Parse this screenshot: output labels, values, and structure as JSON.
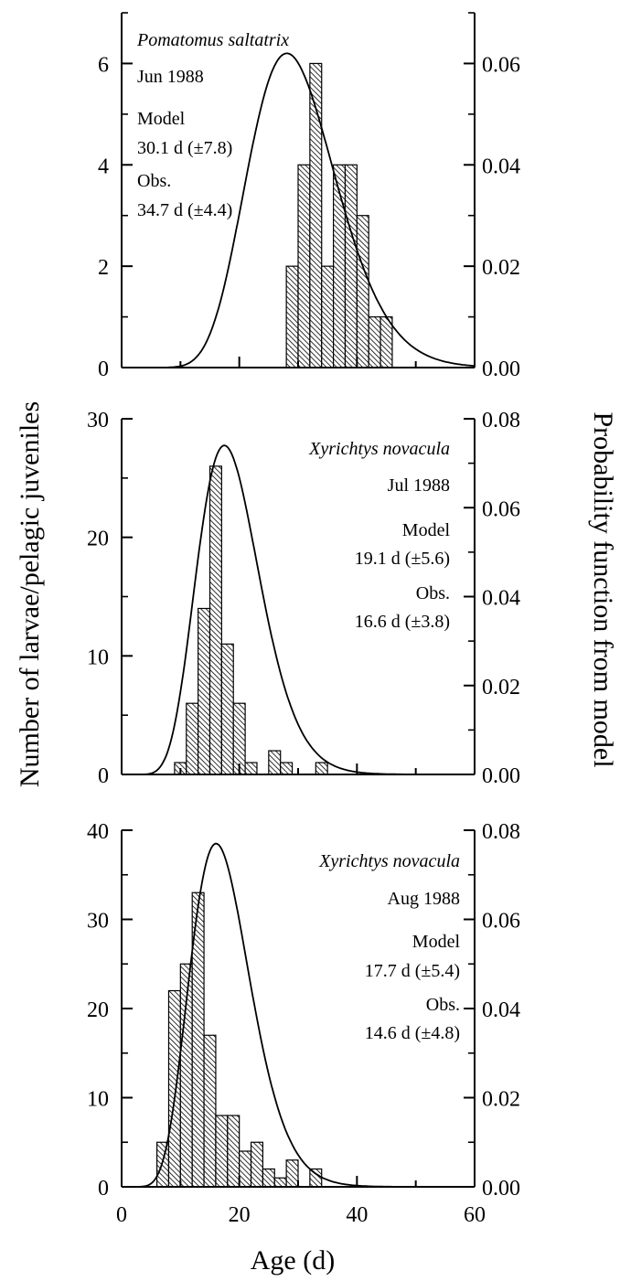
{
  "chart_data": [
    {
      "type": "bar",
      "overlay": "line",
      "x_tick_labels": [
        "",
        "",
        "",
        ""
      ],
      "y_tick_labels": [
        "0",
        "2",
        "4",
        "6"
      ],
      "y2_tick_labels": [
        "0.00",
        "0.02",
        "0.04",
        "0.06"
      ],
      "annotations": [
        {
          "text": "Pomatomus saltatrix",
          "italic": true
        },
        {
          "text": "Jun 1988",
          "italic": false
        },
        {
          "text": "Model",
          "italic": false
        },
        {
          "text": "30.1 d (±7.8)",
          "italic": false
        },
        {
          "text": "Obs.",
          "italic": false
        },
        {
          "text": "34.7 d (±4.4)",
          "italic": false
        }
      ],
      "xlim": [
        0,
        60
      ],
      "ylim": [
        0,
        7
      ],
      "y2lim": [
        0,
        0.07
      ],
      "bin_width": 2,
      "bars": [
        {
          "x": 28,
          "count": 2
        },
        {
          "x": 30,
          "count": 4
        },
        {
          "x": 32,
          "count": 6
        },
        {
          "x": 34,
          "count": 2
        },
        {
          "x": 36,
          "count": 4
        },
        {
          "x": 38,
          "count": 4
        },
        {
          "x": 40,
          "count": 3
        },
        {
          "x": 42,
          "count": 1
        },
        {
          "x": 44,
          "count": 1
        }
      ],
      "model_curve": {
        "mean": 30.1,
        "sd": 7.8,
        "peak": 0.062
      },
      "grid": false
    },
    {
      "type": "bar",
      "overlay": "line",
      "x_tick_labels": [
        "",
        "",
        "",
        ""
      ],
      "y_tick_labels": [
        "0",
        "10",
        "20",
        "30"
      ],
      "y2_tick_labels": [
        "0.00",
        "0.02",
        "0.04",
        "0.06",
        "0.08"
      ],
      "annotations": [
        {
          "text": "Xyrichtys novacula",
          "italic": true
        },
        {
          "text": "Jul 1988",
          "italic": false
        },
        {
          "text": "Model",
          "italic": false
        },
        {
          "text": "19.1 d (±5.6)",
          "italic": false
        },
        {
          "text": "Obs.",
          "italic": false
        },
        {
          "text": "16.6 d (±3.8)",
          "italic": false
        }
      ],
      "xlim": [
        0,
        60
      ],
      "ylim": [
        0,
        30
      ],
      "y2lim": [
        0,
        0.08
      ],
      "bin_width": 2,
      "bars": [
        {
          "x": 9,
          "count": 1
        },
        {
          "x": 11,
          "count": 6
        },
        {
          "x": 13,
          "count": 14
        },
        {
          "x": 15,
          "count": 26
        },
        {
          "x": 17,
          "count": 11
        },
        {
          "x": 19,
          "count": 6
        },
        {
          "x": 21,
          "count": 1
        },
        {
          "x": 25,
          "count": 2
        },
        {
          "x": 27,
          "count": 1
        },
        {
          "x": 33,
          "count": 1
        }
      ],
      "model_curve": {
        "mean": 19.1,
        "sd": 5.6,
        "peak": 0.074
      },
      "grid": false
    },
    {
      "type": "bar",
      "overlay": "line",
      "x_tick_labels": [
        "0",
        "20",
        "40",
        "60"
      ],
      "y_tick_labels": [
        "0",
        "10",
        "20",
        "30",
        "40"
      ],
      "y2_tick_labels": [
        "0.00",
        "0.02",
        "0.04",
        "0.06",
        "0.08"
      ],
      "annotations": [
        {
          "text": "Xyrichtys novacula",
          "italic": true
        },
        {
          "text": "Aug 1988",
          "italic": false
        },
        {
          "text": "Model",
          "italic": false
        },
        {
          "text": "17.7 d (±5.4)",
          "italic": false
        },
        {
          "text": "Obs.",
          "italic": false
        },
        {
          "text": "14.6 d (±4.8)",
          "italic": false
        }
      ],
      "xlim": [
        0,
        60
      ],
      "ylim": [
        0,
        40
      ],
      "y2lim": [
        0,
        0.08
      ],
      "bin_width": 2,
      "bars": [
        {
          "x": 6,
          "count": 5
        },
        {
          "x": 8,
          "count": 22
        },
        {
          "x": 10,
          "count": 25
        },
        {
          "x": 12,
          "count": 33
        },
        {
          "x": 14,
          "count": 17
        },
        {
          "x": 16,
          "count": 8
        },
        {
          "x": 18,
          "count": 8
        },
        {
          "x": 20,
          "count": 4
        },
        {
          "x": 22,
          "count": 5
        },
        {
          "x": 24,
          "count": 2
        },
        {
          "x": 26,
          "count": 1
        },
        {
          "x": 28,
          "count": 3
        },
        {
          "x": 32,
          "count": 2
        }
      ],
      "model_curve": {
        "mean": 17.7,
        "sd": 5.4,
        "peak": 0.077
      },
      "grid": false
    }
  ],
  "xlabel": "Age (d)",
  "ylabel": "Number of larvae/pelagic juveniles",
  "y2label": "Probability function from model",
  "colors": {
    "axis": "#000000",
    "bar_fill": "#ffffff",
    "hatch": "#000000",
    "curve": "#000000"
  }
}
